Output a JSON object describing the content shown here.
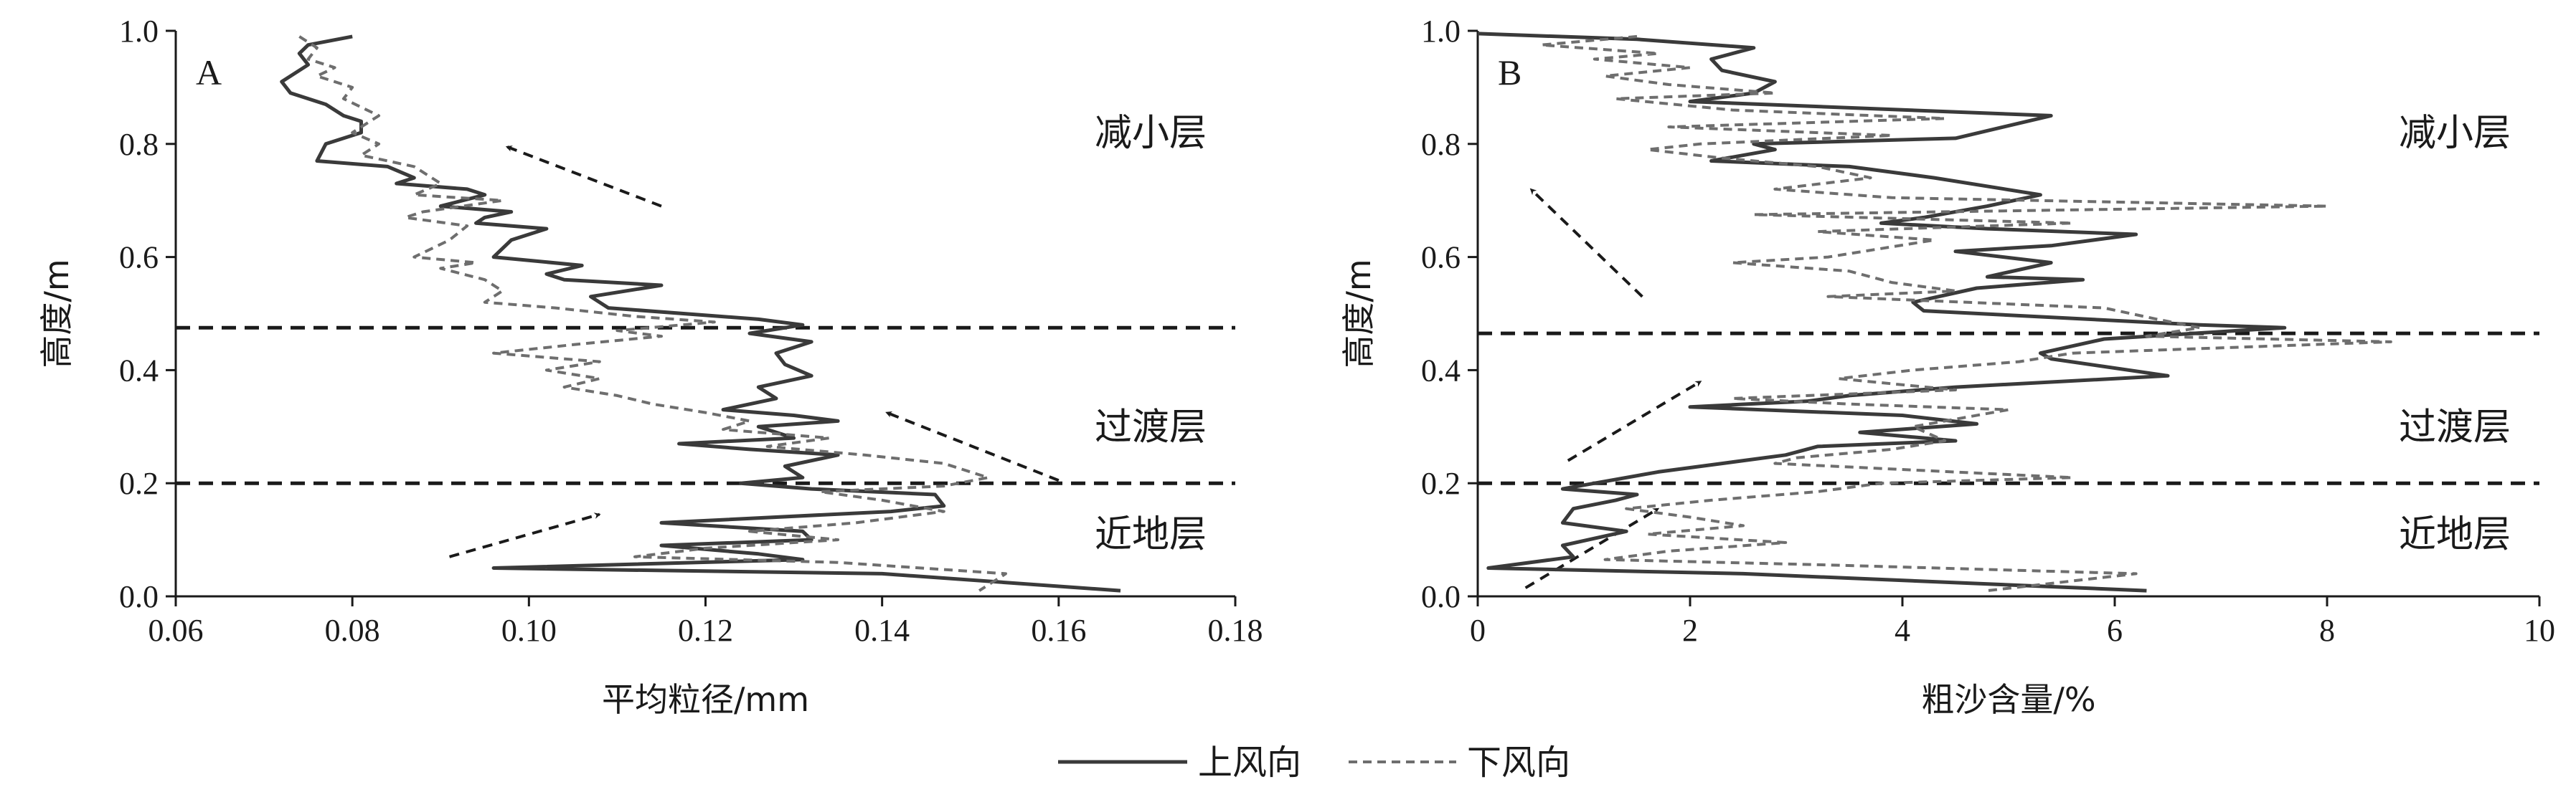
{
  "legend": {
    "upwind_label": "上风向",
    "downwind_label": "下风向"
  },
  "colors": {
    "axis": "#1a1a1a",
    "upwind": "#3a3a3a",
    "downwind": "#6e6e6e"
  },
  "chart_data": [
    {
      "type": "line",
      "panel_label": "A",
      "xlabel": "平均粒径/mm",
      "ylabel": "高度/m",
      "xlim": [
        0.06,
        0.18
      ],
      "ylim": [
        0.0,
        1.0
      ],
      "x_ticks": [
        "0.06",
        "0.08",
        "0.10",
        "0.12",
        "0.14",
        "0.16",
        "0.18"
      ],
      "y_ticks": [
        "0.0",
        "0.2",
        "0.4",
        "0.6",
        "0.8",
        "1.0"
      ],
      "grid": false,
      "boundaries": [
        0.475,
        0.2
      ],
      "layers": [
        {
          "label": "减小层",
          "y": 0.82
        },
        {
          "label": "过渡层",
          "y": 0.3
        },
        {
          "label": "近地层",
          "y": 0.11
        }
      ],
      "trend_arrows": [
        {
          "from": [
            0.115,
            0.69
          ],
          "to": [
            0.0975,
            0.795
          ]
        },
        {
          "from": [
            0.16,
            0.205
          ],
          "to": [
            0.1405,
            0.325
          ]
        },
        {
          "from": [
            0.091,
            0.07
          ],
          "to": [
            0.108,
            0.145
          ]
        }
      ],
      "series": [
        {
          "name": "上风向",
          "style": "solid",
          "points": [
            [
              0.08,
              0.99
            ],
            [
              0.075,
              0.975
            ],
            [
              0.074,
              0.96
            ],
            [
              0.075,
              0.94
            ],
            [
              0.072,
              0.91
            ],
            [
              0.073,
              0.89
            ],
            [
              0.077,
              0.87
            ],
            [
              0.079,
              0.85
            ],
            [
              0.081,
              0.84
            ],
            [
              0.081,
              0.82
            ],
            [
              0.077,
              0.8
            ],
            [
              0.076,
              0.77
            ],
            [
              0.084,
              0.76
            ],
            [
              0.087,
              0.74
            ],
            [
              0.085,
              0.73
            ],
            [
              0.093,
              0.72
            ],
            [
              0.095,
              0.71
            ],
            [
              0.09,
              0.69
            ],
            [
              0.098,
              0.68
            ],
            [
              0.095,
              0.67
            ],
            [
              0.094,
              0.66
            ],
            [
              0.102,
              0.65
            ],
            [
              0.098,
              0.63
            ],
            [
              0.096,
              0.6
            ],
            [
              0.106,
              0.585
            ],
            [
              0.102,
              0.57
            ],
            [
              0.104,
              0.56
            ],
            [
              0.115,
              0.55
            ],
            [
              0.107,
              0.53
            ],
            [
              0.109,
              0.51
            ],
            [
              0.126,
              0.49
            ],
            [
              0.131,
              0.48
            ],
            [
              0.125,
              0.465
            ],
            [
              0.132,
              0.45
            ],
            [
              0.128,
              0.43
            ],
            [
              0.129,
              0.41
            ],
            [
              0.132,
              0.39
            ],
            [
              0.126,
              0.37
            ],
            [
              0.128,
              0.35
            ],
            [
              0.122,
              0.33
            ],
            [
              0.13,
              0.32
            ],
            [
              0.135,
              0.31
            ],
            [
              0.126,
              0.3
            ],
            [
              0.13,
              0.28
            ],
            [
              0.117,
              0.27
            ],
            [
              0.125,
              0.26
            ],
            [
              0.135,
              0.25
            ],
            [
              0.129,
              0.23
            ],
            [
              0.131,
              0.21
            ],
            [
              0.124,
              0.2
            ],
            [
              0.132,
              0.19
            ],
            [
              0.146,
              0.18
            ],
            [
              0.147,
              0.16
            ],
            [
              0.141,
              0.15
            ],
            [
              0.115,
              0.13
            ],
            [
              0.131,
              0.115
            ],
            [
              0.132,
              0.1
            ],
            [
              0.115,
              0.09
            ],
            [
              0.126,
              0.075
            ],
            [
              0.131,
              0.065
            ],
            [
              0.096,
              0.05
            ],
            [
              0.14,
              0.04
            ],
            [
              0.167,
              0.01
            ]
          ]
        },
        {
          "name": "下风向",
          "style": "dashed",
          "points": [
            [
              0.074,
              0.99
            ],
            [
              0.076,
              0.97
            ],
            [
              0.075,
              0.95
            ],
            [
              0.078,
              0.935
            ],
            [
              0.076,
              0.92
            ],
            [
              0.08,
              0.9
            ],
            [
              0.079,
              0.88
            ],
            [
              0.083,
              0.85
            ],
            [
              0.08,
              0.82
            ],
            [
              0.083,
              0.8
            ],
            [
              0.081,
              0.78
            ],
            [
              0.087,
              0.76
            ],
            [
              0.09,
              0.73
            ],
            [
              0.087,
              0.71
            ],
            [
              0.097,
              0.7
            ],
            [
              0.088,
              0.68
            ],
            [
              0.086,
              0.67
            ],
            [
              0.093,
              0.655
            ],
            [
              0.091,
              0.63
            ],
            [
              0.087,
              0.6
            ],
            [
              0.094,
              0.59
            ],
            [
              0.09,
              0.58
            ],
            [
              0.095,
              0.56
            ],
            [
              0.097,
              0.54
            ],
            [
              0.095,
              0.52
            ],
            [
              0.103,
              0.51
            ],
            [
              0.112,
              0.495
            ],
            [
              0.121,
              0.485
            ],
            [
              0.11,
              0.47
            ],
            [
              0.115,
              0.46
            ],
            [
              0.105,
              0.445
            ],
            [
              0.096,
              0.43
            ],
            [
              0.108,
              0.415
            ],
            [
              0.102,
              0.4
            ],
            [
              0.108,
              0.385
            ],
            [
              0.104,
              0.37
            ],
            [
              0.11,
              0.355
            ],
            [
              0.114,
              0.34
            ],
            [
              0.12,
              0.325
            ],
            [
              0.125,
              0.31
            ],
            [
              0.122,
              0.295
            ],
            [
              0.134,
              0.28
            ],
            [
              0.127,
              0.265
            ],
            [
              0.138,
              0.25
            ],
            [
              0.147,
              0.235
            ],
            [
              0.152,
              0.21
            ],
            [
              0.147,
              0.195
            ],
            [
              0.133,
              0.185
            ],
            [
              0.14,
              0.17
            ],
            [
              0.147,
              0.15
            ],
            [
              0.137,
              0.13
            ],
            [
              0.125,
              0.115
            ],
            [
              0.135,
              0.1
            ],
            [
              0.12,
              0.085
            ],
            [
              0.112,
              0.07
            ],
            [
              0.135,
              0.06
            ],
            [
              0.154,
              0.04
            ],
            [
              0.151,
              0.01
            ]
          ]
        }
      ]
    },
    {
      "type": "line",
      "panel_label": "B",
      "xlabel": "粗沙含量/%",
      "ylabel": "高度/m",
      "xlim": [
        0,
        10
      ],
      "ylim": [
        0.0,
        1.0
      ],
      "x_ticks": [
        "0",
        "2",
        "4",
        "6",
        "8",
        "10"
      ],
      "y_ticks": [
        "0.0",
        "0.2",
        "0.4",
        "0.6",
        "0.8",
        "1.0"
      ],
      "grid": false,
      "boundaries": [
        0.465,
        0.2
      ],
      "layers": [
        {
          "label": "减小层",
          "y": 0.82
        },
        {
          "label": "过渡层",
          "y": 0.3
        },
        {
          "label": "近地层",
          "y": 0.11
        }
      ],
      "trend_arrows": [
        {
          "from": [
            1.55,
            0.53
          ],
          "to": [
            0.5,
            0.72
          ]
        },
        {
          "from": [
            0.85,
            0.24
          ],
          "to": [
            2.1,
            0.38
          ]
        },
        {
          "from": [
            0.45,
            0.015
          ],
          "to": [
            1.7,
            0.155
          ]
        }
      ],
      "series": [
        {
          "name": "上风向",
          "style": "solid",
          "points": [
            [
              0.0,
              0.995
            ],
            [
              1.5,
              0.985
            ],
            [
              2.6,
              0.97
            ],
            [
              2.2,
              0.95
            ],
            [
              2.3,
              0.93
            ],
            [
              2.8,
              0.91
            ],
            [
              2.6,
              0.89
            ],
            [
              2.0,
              0.875
            ],
            [
              5.4,
              0.85
            ],
            [
              4.5,
              0.81
            ],
            [
              2.6,
              0.8
            ],
            [
              2.8,
              0.79
            ],
            [
              2.2,
              0.77
            ],
            [
              3.5,
              0.76
            ],
            [
              4.3,
              0.74
            ],
            [
              5.3,
              0.71
            ],
            [
              4.8,
              0.69
            ],
            [
              4.2,
              0.67
            ],
            [
              3.8,
              0.66
            ],
            [
              4.8,
              0.65
            ],
            [
              6.2,
              0.64
            ],
            [
              5.4,
              0.62
            ],
            [
              4.5,
              0.61
            ],
            [
              5.4,
              0.59
            ],
            [
              4.8,
              0.565
            ],
            [
              5.7,
              0.56
            ],
            [
              4.7,
              0.545
            ],
            [
              4.1,
              0.52
            ],
            [
              4.2,
              0.505
            ],
            [
              6.8,
              0.48
            ],
            [
              7.6,
              0.475
            ],
            [
              5.9,
              0.455
            ],
            [
              5.3,
              0.43
            ],
            [
              5.4,
              0.42
            ],
            [
              6.5,
              0.39
            ],
            [
              4.5,
              0.37
            ],
            [
              3.5,
              0.355
            ],
            [
              3.1,
              0.345
            ],
            [
              2.0,
              0.335
            ],
            [
              4.0,
              0.32
            ],
            [
              4.7,
              0.305
            ],
            [
              3.6,
              0.29
            ],
            [
              4.5,
              0.275
            ],
            [
              3.2,
              0.265
            ],
            [
              2.9,
              0.25
            ],
            [
              2.3,
              0.235
            ],
            [
              1.7,
              0.22
            ],
            [
              1.1,
              0.2
            ],
            [
              0.8,
              0.19
            ],
            [
              1.5,
              0.18
            ],
            [
              1.3,
              0.17
            ],
            [
              0.9,
              0.155
            ],
            [
              0.8,
              0.13
            ],
            [
              1.4,
              0.115
            ],
            [
              0.8,
              0.09
            ],
            [
              0.9,
              0.07
            ],
            [
              0.1,
              0.05
            ],
            [
              2.5,
              0.04
            ],
            [
              6.3,
              0.01
            ]
          ]
        },
        {
          "name": "下风向",
          "style": "dashed",
          "points": [
            [
              1.5,
              0.99
            ],
            [
              0.6,
              0.975
            ],
            [
              1.7,
              0.96
            ],
            [
              1.1,
              0.95
            ],
            [
              2.0,
              0.935
            ],
            [
              1.2,
              0.92
            ],
            [
              1.8,
              0.905
            ],
            [
              2.8,
              0.89
            ],
            [
              1.3,
              0.88
            ],
            [
              2.4,
              0.86
            ],
            [
              4.4,
              0.845
            ],
            [
              1.8,
              0.83
            ],
            [
              3.9,
              0.815
            ],
            [
              2.1,
              0.8
            ],
            [
              1.6,
              0.79
            ],
            [
              2.3,
              0.775
            ],
            [
              3.2,
              0.76
            ],
            [
              3.7,
              0.74
            ],
            [
              2.8,
              0.72
            ],
            [
              3.9,
              0.705
            ],
            [
              8.0,
              0.69
            ],
            [
              2.6,
              0.675
            ],
            [
              5.6,
              0.66
            ],
            [
              3.2,
              0.645
            ],
            [
              4.3,
              0.63
            ],
            [
              3.3,
              0.6
            ],
            [
              2.4,
              0.59
            ],
            [
              3.5,
              0.575
            ],
            [
              3.9,
              0.555
            ],
            [
              4.5,
              0.54
            ],
            [
              3.3,
              0.53
            ],
            [
              5.9,
              0.51
            ],
            [
              6.4,
              0.49
            ],
            [
              6.8,
              0.475
            ],
            [
              6.3,
              0.46
            ],
            [
              8.6,
              0.45
            ],
            [
              5.6,
              0.43
            ],
            [
              5.1,
              0.415
            ],
            [
              4.1,
              0.4
            ],
            [
              3.4,
              0.385
            ],
            [
              4.5,
              0.365
            ],
            [
              2.4,
              0.35
            ],
            [
              3.5,
              0.34
            ],
            [
              5.0,
              0.33
            ],
            [
              4.1,
              0.3
            ],
            [
              4.4,
              0.275
            ],
            [
              3.9,
              0.26
            ],
            [
              3.0,
              0.245
            ],
            [
              2.8,
              0.235
            ],
            [
              5.6,
              0.21
            ],
            [
              3.8,
              0.2
            ],
            [
              3.2,
              0.185
            ],
            [
              2.2,
              0.17
            ],
            [
              1.4,
              0.155
            ],
            [
              2.0,
              0.14
            ],
            [
              2.5,
              0.125
            ],
            [
              1.6,
              0.11
            ],
            [
              2.9,
              0.095
            ],
            [
              1.8,
              0.08
            ],
            [
              1.2,
              0.065
            ],
            [
              3.4,
              0.055
            ],
            [
              6.2,
              0.04
            ],
            [
              4.8,
              0.01
            ]
          ]
        }
      ]
    }
  ]
}
